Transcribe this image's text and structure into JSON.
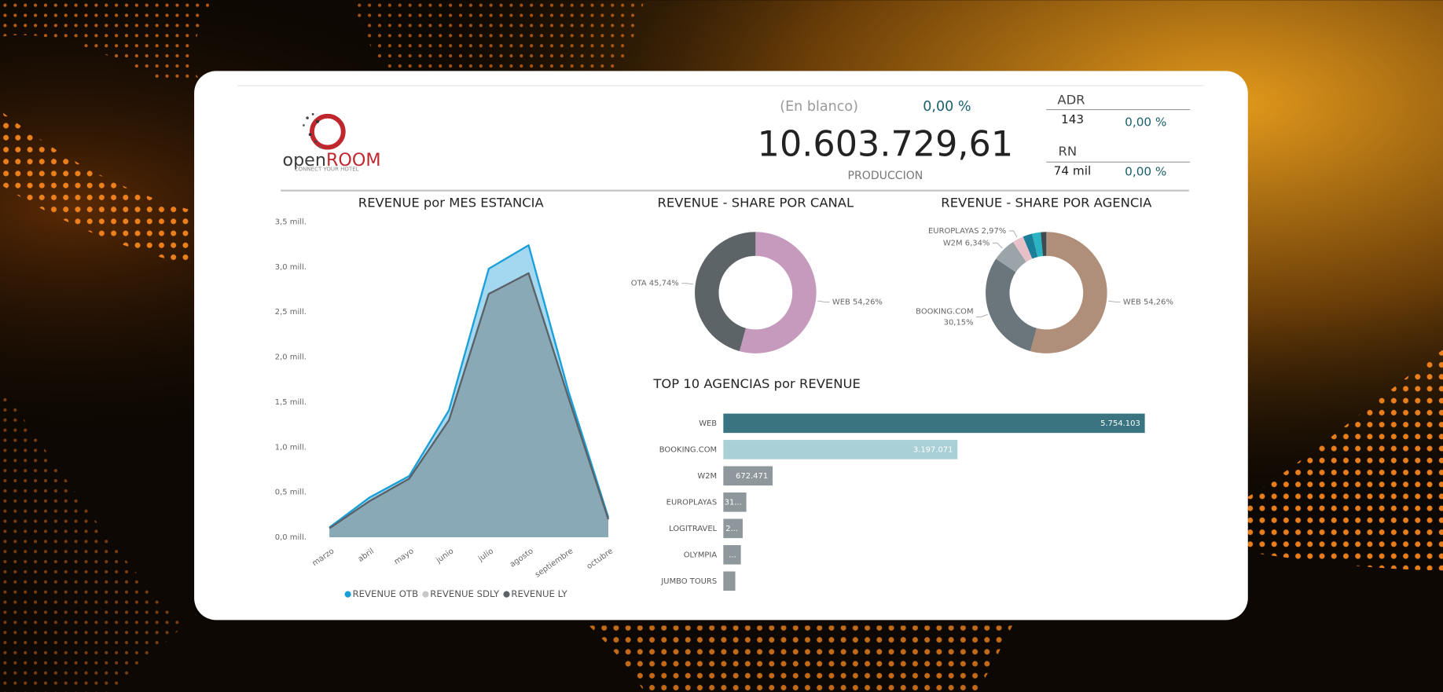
{
  "logo": {
    "brand_a": "open",
    "brand_b": "ROOM",
    "tagline": "CONNECT YOUR HOTEL"
  },
  "kpis": {
    "blank_label": "(En blanco)",
    "blank_pct": "0,00 %",
    "total": "10.603.729,61",
    "total_label": "PRODUCCION",
    "adr_label": "ADR",
    "adr_value": "143",
    "adr_pct": "0,00 %",
    "rn_label": "RN",
    "rn_value": "74 mil",
    "rn_pct": "0,00 %"
  },
  "chart_data": [
    {
      "type": "area",
      "title": "REVENUE por MES ESTANCIA",
      "categories": [
        "marzo",
        "abril",
        "mayo",
        "junio",
        "julio",
        "agosto",
        "septiembre",
        "octubre"
      ],
      "series": [
        {
          "name": "REVENUE OTB",
          "color": "#1a9fd8",
          "fill": "#a4d8f0",
          "values": [
            0.11,
            0.44,
            0.68,
            1.41,
            2.98,
            3.24,
            1.62,
            0.22
          ]
        },
        {
          "name": "REVENUE SDLY",
          "color": "#c8c8c8",
          "fill": "#dddddd",
          "values": [
            null,
            null,
            null,
            null,
            null,
            null,
            null,
            null
          ]
        },
        {
          "name": "REVENUE LY",
          "color": "#5b6267",
          "fill": "#89a9b6",
          "values": [
            0.1,
            0.4,
            0.65,
            1.3,
            2.7,
            2.93,
            1.55,
            0.2
          ]
        }
      ],
      "ylim": [
        0,
        3.5
      ],
      "yticks": [
        {
          "value": 0,
          "label": "0,0 mill."
        },
        {
          "value": 0.5,
          "label": "0,5 mill."
        },
        {
          "value": 1,
          "label": "1,0 mill."
        },
        {
          "value": 1.5,
          "label": "1,5 mill."
        },
        {
          "value": 2,
          "label": "2,0 mill."
        },
        {
          "value": 2.5,
          "label": "2,5 mill."
        },
        {
          "value": 3,
          "label": "3,0 mill."
        },
        {
          "value": 3.5,
          "label": "3,5 mill."
        }
      ]
    },
    {
      "type": "donut",
      "title": "REVENUE - SHARE POR CANAL",
      "categories": [
        "WEB",
        "OTA"
      ],
      "values": [
        54.26,
        45.74
      ],
      "value_labels": [
        "54,26%",
        "45,74%"
      ],
      "colors": [
        "#c69abd",
        "#5d6468"
      ]
    },
    {
      "type": "donut",
      "title": "REVENUE - SHARE POR AGENCIA",
      "categories": [
        "WEB",
        "BOOKING.COM",
        "W2M",
        "EUROPLAYAS",
        null,
        null,
        null
      ],
      "values": [
        54.26,
        30.15,
        6.34,
        2.97,
        2.5,
        2.3,
        1.48
      ],
      "value_labels": [
        "54,26%",
        "30,15%",
        "6,34%",
        "2,97%",
        null,
        null,
        null
      ],
      "colors": [
        "#b08f7a",
        "#6a767c",
        "#9ba5a9",
        "#e8c0c8",
        "#1b7f99",
        "#2ab3c2",
        "#3d4a50"
      ]
    },
    {
      "type": "hbar",
      "title": "TOP 10 AGENCIAS por REVENUE",
      "categories": [
        "WEB",
        "BOOKING.COM",
        "W2M",
        "EUROPLAYAS",
        "LOGITRAVEL",
        "OLYMPIA",
        "JUMBO TOURS"
      ],
      "values": [
        5754103,
        3197071,
        672471,
        314000,
        264000,
        239000,
        163000
      ],
      "value_labels": [
        "5.754.103",
        "3.197.071",
        "672.471",
        "31...",
        "2...",
        "...",
        null
      ],
      "colors": [
        "#3a7480",
        "#a9d0d6",
        "#8e979b",
        "#8e979b",
        "#8e979b",
        "#8e979b",
        "#8e979b"
      ]
    }
  ]
}
